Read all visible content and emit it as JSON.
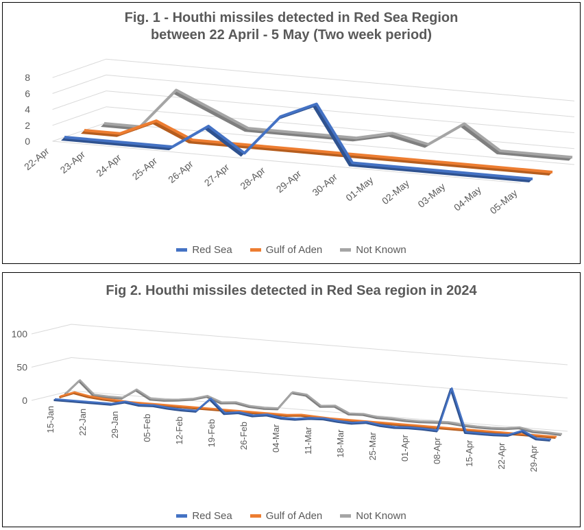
{
  "chart_data": [
    {
      "type": "line",
      "title": "Fig. 1 - Houthi missiles detected in Red Sea Region between 22 April - 5 May (Two week period)",
      "title_lines": [
        "Fig. 1 - Houthi missiles detected in Red Sea Region",
        "between 22 April - 5 May (Two week period)"
      ],
      "x": [
        "22-Apr",
        "23-Apr",
        "24-Apr",
        "25-Apr",
        "26-Apr",
        "27-Apr",
        "28-Apr",
        "29-Apr",
        "30-Apr",
        "01-May",
        "02-May",
        "03-May",
        "04-May",
        "05-May"
      ],
      "y_ticks": [
        "0",
        "2",
        "4",
        "6",
        "8"
      ],
      "ylim": [
        0,
        8
      ],
      "legend_position": "bottom",
      "series": [
        {
          "name": "Red Sea",
          "color": "#4472C4",
          "values": [
            0,
            0,
            0,
            0,
            3,
            0,
            5,
            7,
            0,
            0,
            0,
            0,
            0,
            0
          ]
        },
        {
          "name": "Gulf of Aden",
          "color": "#ED7D31",
          "values": [
            0,
            0,
            2,
            0,
            0,
            0,
            0,
            0,
            0,
            0,
            0,
            0,
            0,
            0
          ]
        },
        {
          "name": "Not Known",
          "color": "#A5A5A5",
          "values": [
            0,
            0,
            5,
            3,
            1,
            1,
            1,
            1,
            2,
            1,
            4,
            1,
            1,
            1
          ]
        }
      ]
    },
    {
      "type": "line",
      "title": "Fig 2. Houthi missiles detected in Red Sea region in 2024",
      "x_tick_labels": [
        "15-Jan",
        "22-Jan",
        "29-Jan",
        "05-Feb",
        "12-Feb",
        "19-Feb",
        "26-Feb",
        "04-Mar",
        "11-Mar",
        "18-Mar",
        "25-Mar",
        "01-Apr",
        "08-Apr",
        "15-Apr",
        "22-Apr",
        "29-Apr"
      ],
      "y_ticks": [
        "0",
        "50",
        "100"
      ],
      "ylim": [
        0,
        100
      ],
      "legend_position": "bottom",
      "series": [
        {
          "name": "Red Sea",
          "color": "#4472C4",
          "values": [
            0,
            0,
            0,
            0,
            0,
            5,
            2,
            3,
            1,
            0,
            0,
            20,
            0,
            3,
            0,
            3,
            0,
            0,
            3,
            4,
            2,
            1,
            4,
            1,
            0,
            1,
            1,
            0,
            65,
            1,
            1,
            1,
            2,
            10,
            0,
            0
          ]
        },
        {
          "name": "Gulf of Aden",
          "color": "#ED7D31",
          "values": [
            0,
            8,
            4,
            2,
            1,
            0,
            0,
            0,
            0,
            0,
            0,
            0,
            0,
            0,
            0,
            0,
            0,
            2,
            1,
            0,
            0,
            0,
            0,
            0,
            0,
            0,
            0,
            0,
            0,
            0,
            0,
            0,
            0,
            0,
            0,
            0
          ]
        },
        {
          "name": "Not Known",
          "color": "#A5A5A5",
          "values": [
            0,
            22,
            2,
            1,
            1,
            15,
            3,
            3,
            5,
            8,
            14,
            6,
            8,
            4,
            3,
            4,
            30,
            28,
            13,
            15,
            5,
            6,
            3,
            3,
            2,
            2,
            3,
            4,
            2,
            1,
            1,
            2,
            5,
            1,
            1,
            0
          ]
        }
      ]
    }
  ]
}
